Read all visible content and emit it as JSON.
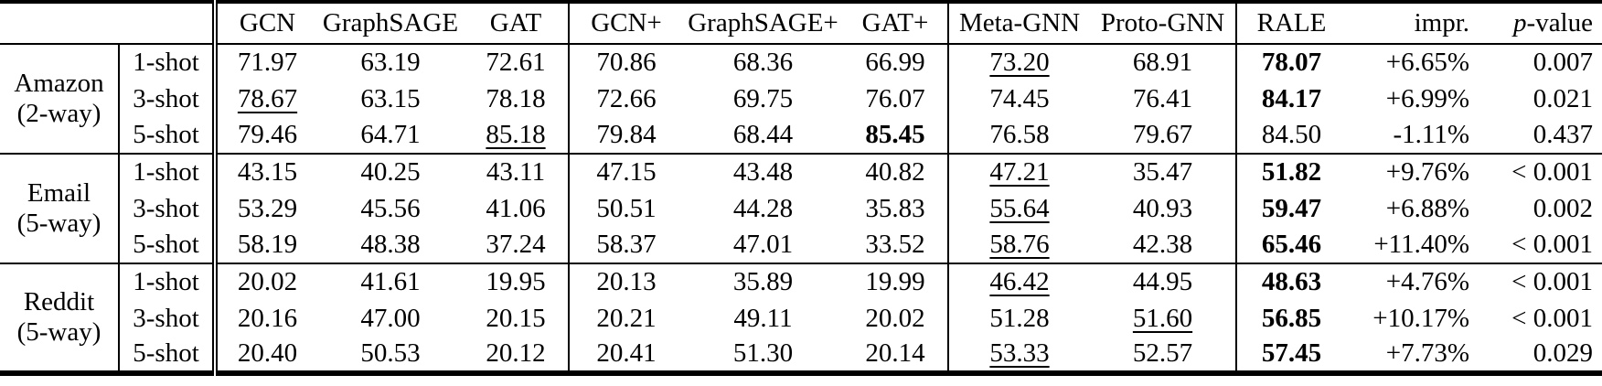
{
  "table": {
    "columns": [
      {
        "label": "GCN"
      },
      {
        "label": "GraphSAGE"
      },
      {
        "label": "GAT"
      },
      {
        "label": "GCN+"
      },
      {
        "label": "GraphSAGE+"
      },
      {
        "label": "GAT+"
      },
      {
        "label": "Meta-GNN"
      },
      {
        "label": "Proto-GNN"
      },
      {
        "label": "RALE"
      },
      {
        "label": "impr."
      },
      {
        "italic": "p",
        "rest": "-value"
      }
    ],
    "groups": [
      {
        "dataset": "Amazon",
        "setting": "(2-way)",
        "rows": [
          {
            "shot": "1-shot",
            "cells": [
              {
                "t": "71.97"
              },
              {
                "t": "63.19"
              },
              {
                "t": "72.61"
              },
              {
                "t": "70.86"
              },
              {
                "t": "68.36"
              },
              {
                "t": "66.99"
              },
              {
                "t": "73.20",
                "u": true
              },
              {
                "t": "68.91"
              },
              {
                "t": "78.07",
                "b": true
              },
              {
                "t": "+6.65%"
              },
              {
                "t": "0.007"
              }
            ]
          },
          {
            "shot": "3-shot",
            "cells": [
              {
                "t": "78.67",
                "u": true
              },
              {
                "t": "63.15"
              },
              {
                "t": "78.18"
              },
              {
                "t": "72.66"
              },
              {
                "t": "69.75"
              },
              {
                "t": "76.07"
              },
              {
                "t": "74.45"
              },
              {
                "t": "76.41"
              },
              {
                "t": "84.17",
                "b": true
              },
              {
                "t": "+6.99%"
              },
              {
                "t": "0.021"
              }
            ]
          },
          {
            "shot": "5-shot",
            "cells": [
              {
                "t": "79.46"
              },
              {
                "t": "64.71"
              },
              {
                "t": "85.18",
                "u": true
              },
              {
                "t": "79.84"
              },
              {
                "t": "68.44"
              },
              {
                "t": "85.45",
                "b": true
              },
              {
                "t": "76.58"
              },
              {
                "t": "79.67"
              },
              {
                "t": "84.50"
              },
              {
                "t": "-1.11%"
              },
              {
                "t": "0.437"
              }
            ]
          }
        ]
      },
      {
        "dataset": "Email",
        "setting": "(5-way)",
        "rows": [
          {
            "shot": "1-shot",
            "cells": [
              {
                "t": "43.15"
              },
              {
                "t": "40.25"
              },
              {
                "t": "43.11"
              },
              {
                "t": "47.15"
              },
              {
                "t": "43.48"
              },
              {
                "t": "40.82"
              },
              {
                "t": "47.21",
                "u": true
              },
              {
                "t": "35.47"
              },
              {
                "t": "51.82",
                "b": true
              },
              {
                "t": "+9.76%"
              },
              {
                "t": "< 0.001"
              }
            ]
          },
          {
            "shot": "3-shot",
            "cells": [
              {
                "t": "53.29"
              },
              {
                "t": "45.56"
              },
              {
                "t": "41.06"
              },
              {
                "t": "50.51"
              },
              {
                "t": "44.28"
              },
              {
                "t": "35.83"
              },
              {
                "t": "55.64",
                "u": true
              },
              {
                "t": "40.93"
              },
              {
                "t": "59.47",
                "b": true
              },
              {
                "t": "+6.88%"
              },
              {
                "t": "0.002"
              }
            ]
          },
          {
            "shot": "5-shot",
            "cells": [
              {
                "t": "58.19"
              },
              {
                "t": "48.38"
              },
              {
                "t": "37.24"
              },
              {
                "t": "58.37"
              },
              {
                "t": "47.01"
              },
              {
                "t": "33.52"
              },
              {
                "t": "58.76",
                "u": true
              },
              {
                "t": "42.38"
              },
              {
                "t": "65.46",
                "b": true
              },
              {
                "t": "+11.40%"
              },
              {
                "t": "< 0.001"
              }
            ]
          }
        ]
      },
      {
        "dataset": "Reddit",
        "setting": "(5-way)",
        "rows": [
          {
            "shot": "1-shot",
            "cells": [
              {
                "t": "20.02"
              },
              {
                "t": "41.61"
              },
              {
                "t": "19.95"
              },
              {
                "t": "20.13"
              },
              {
                "t": "35.89"
              },
              {
                "t": "19.99"
              },
              {
                "t": "46.42",
                "u": true
              },
              {
                "t": "44.95"
              },
              {
                "t": "48.63",
                "b": true
              },
              {
                "t": "+4.76%"
              },
              {
                "t": "< 0.001"
              }
            ]
          },
          {
            "shot": "3-shot",
            "cells": [
              {
                "t": "20.16"
              },
              {
                "t": "47.00"
              },
              {
                "t": "20.15"
              },
              {
                "t": "20.21"
              },
              {
                "t": "49.11"
              },
              {
                "t": "20.02"
              },
              {
                "t": "51.28"
              },
              {
                "t": "51.60",
                "u": true
              },
              {
                "t": "56.85",
                "b": true
              },
              {
                "t": "+10.17%"
              },
              {
                "t": "< 0.001"
              }
            ]
          },
          {
            "shot": "5-shot",
            "cells": [
              {
                "t": "20.40"
              },
              {
                "t": "50.53"
              },
              {
                "t": "20.12"
              },
              {
                "t": "20.41"
              },
              {
                "t": "51.30"
              },
              {
                "t": "20.14"
              },
              {
                "t": "53.33",
                "u": true
              },
              {
                "t": "52.57"
              },
              {
                "t": "57.45",
                "b": true
              },
              {
                "t": "+7.73%"
              },
              {
                "t": "0.029"
              }
            ]
          }
        ]
      }
    ],
    "text_color": "#000000",
    "background": "#ffffff"
  }
}
